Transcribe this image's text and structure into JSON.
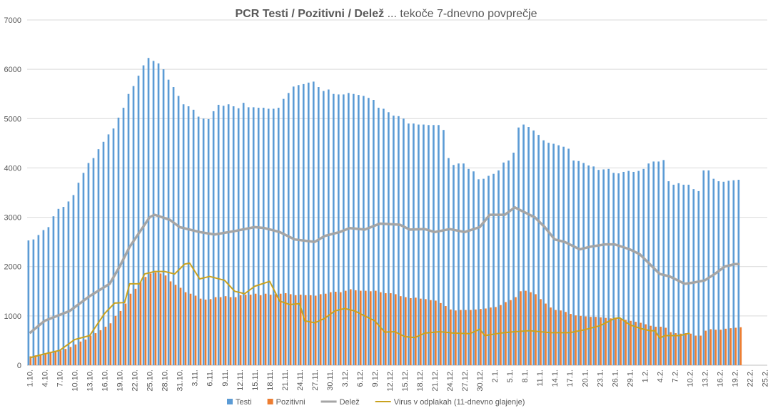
{
  "chart_data": {
    "type": "bar",
    "title_bold": "PCR Testi / Pozitivni / Delež",
    "title_rest": " ... tekoče 7-dnevno povprečje",
    "ylim": [
      0,
      7000
    ],
    "yticks": [
      "0",
      "1000",
      "2000",
      "3000",
      "4000",
      "5000",
      "6000",
      "7000"
    ],
    "grid": true,
    "legend_position": "bottom",
    "xticks": [
      "1.10.",
      "4.10.",
      "7.10.",
      "10.10.",
      "13.10.",
      "16.10.",
      "19.10.",
      "22.10.",
      "25.10.",
      "28.10.",
      "31.10.",
      "3.11.",
      "6.11.",
      "9.11.",
      "12.11.",
      "15.11.",
      "18.11.",
      "21.11.",
      "24.11.",
      "27.11.",
      "30.11.",
      "3.12.",
      "6.12.",
      "9.12.",
      "12.12.",
      "15.12.",
      "18.12.",
      "21.12.",
      "24.12.",
      "27.12.",
      "30.12.",
      "2.1.",
      "5.1.",
      "8.1.",
      "11.1.",
      "14.1.",
      "17.1.",
      "20.1.",
      "23.1.",
      "26.1.",
      "29.1.",
      "1.2.",
      "4.2.",
      "7.2.",
      "10.2.",
      "13.2.",
      "16.2.",
      "19.2.",
      "22.2.",
      "25.2."
    ],
    "categories": [
      "1.10.",
      "2.10.",
      "3.10.",
      "4.10.",
      "5.10.",
      "6.10.",
      "7.10.",
      "8.10.",
      "9.10.",
      "10.10.",
      "11.10.",
      "12.10.",
      "13.10.",
      "14.10.",
      "15.10.",
      "16.10.",
      "17.10.",
      "18.10.",
      "19.10.",
      "20.10.",
      "21.10.",
      "22.10.",
      "23.10.",
      "24.10.",
      "25.10.",
      "26.10.",
      "27.10.",
      "28.10.",
      "29.10.",
      "30.10.",
      "31.10.",
      "1.11.",
      "2.11.",
      "3.11.",
      "4.11.",
      "5.11.",
      "6.11.",
      "7.11.",
      "8.11.",
      "9.11.",
      "10.11.",
      "11.11.",
      "12.11.",
      "13.11.",
      "14.11.",
      "15.11.",
      "16.11.",
      "17.11.",
      "18.11.",
      "19.11.",
      "20.11.",
      "21.11.",
      "22.11.",
      "23.11.",
      "24.11.",
      "25.11.",
      "26.11.",
      "27.11.",
      "28.11.",
      "29.11.",
      "30.11.",
      "1.12.",
      "2.12.",
      "3.12.",
      "4.12.",
      "5.12.",
      "6.12.",
      "7.12.",
      "8.12.",
      "9.12.",
      "10.12.",
      "11.12.",
      "12.12.",
      "13.12.",
      "14.12.",
      "15.12.",
      "16.12.",
      "17.12.",
      "18.12.",
      "19.12.",
      "20.12.",
      "21.12.",
      "22.12.",
      "23.12.",
      "24.12.",
      "25.12.",
      "26.12.",
      "27.12.",
      "28.12.",
      "29.12.",
      "30.12.",
      "31.12.",
      "1.1.",
      "2.1.",
      "3.1.",
      "4.1.",
      "5.1.",
      "6.1.",
      "7.1.",
      "8.1.",
      "9.1.",
      "10.1.",
      "11.1.",
      "12.1.",
      "13.1.",
      "14.1.",
      "15.1.",
      "16.1.",
      "17.1.",
      "18.1.",
      "19.1.",
      "20.1.",
      "21.1.",
      "22.1.",
      "23.1.",
      "24.1.",
      "25.1.",
      "26.1.",
      "27.1.",
      "28.1.",
      "29.1.",
      "30.1.",
      "31.1.",
      "1.2.",
      "2.2.",
      "3.2.",
      "4.2.",
      "5.2.",
      "6.2.",
      "7.2.",
      "8.2.",
      "9.2.",
      "10.2.",
      "11.2.",
      "12.2.",
      "13.2.",
      "14.2.",
      "15.2.",
      "16.2.",
      "17.2.",
      "18.2.",
      "19.2.",
      "20.2."
    ],
    "series": [
      {
        "name": "Testi",
        "kind": "bar",
        "color": "#5B9BD5",
        "values": [
          2530,
          2550,
          2640,
          2740,
          2800,
          3020,
          3170,
          3210,
          3320,
          3450,
          3700,
          3900,
          4100,
          4200,
          4380,
          4530,
          4680,
          4800,
          5020,
          5220,
          5500,
          5660,
          5870,
          6080,
          6230,
          6170,
          6120,
          6000,
          5790,
          5640,
          5460,
          5290,
          5250,
          5180,
          5040,
          5000,
          4990,
          5150,
          5280,
          5260,
          5290,
          5250,
          5210,
          5320,
          5230,
          5230,
          5220,
          5220,
          5200,
          5200,
          5220,
          5400,
          5520,
          5650,
          5680,
          5700,
          5730,
          5750,
          5640,
          5560,
          5590,
          5500,
          5490,
          5490,
          5520,
          5500,
          5480,
          5460,
          5420,
          5380,
          5220,
          5200,
          5130,
          5060,
          5050,
          5000,
          4900,
          4900,
          4880,
          4880,
          4870,
          4870,
          4870,
          4770,
          4200,
          4060,
          4090,
          4090,
          3980,
          3930,
          3770,
          3780,
          3840,
          3880,
          3950,
          4110,
          4150,
          4310,
          4820,
          4880,
          4830,
          4760,
          4670,
          4560,
          4510,
          4490,
          4460,
          4430,
          4390,
          4150,
          4140,
          4100,
          4050,
          4030,
          3960,
          3970,
          3980,
          3900,
          3890,
          3920,
          3940,
          3920,
          3940,
          3980,
          4090,
          4130,
          4130,
          4160,
          3730,
          3660,
          3690,
          3660,
          3660,
          3570,
          3530,
          3950,
          3950,
          3780,
          3730,
          3720,
          3740,
          3750,
          3760
        ]
      },
      {
        "name": "Pozitivni",
        "kind": "bar",
        "color": "#ED7D31",
        "values": [
          180,
          200,
          220,
          240,
          270,
          280,
          300,
          330,
          370,
          420,
          480,
          520,
          600,
          650,
          710,
          780,
          850,
          1000,
          1100,
          1250,
          1450,
          1550,
          1680,
          1790,
          1860,
          1880,
          1860,
          1820,
          1700,
          1630,
          1570,
          1480,
          1450,
          1410,
          1350,
          1330,
          1340,
          1380,
          1380,
          1400,
          1380,
          1380,
          1420,
          1430,
          1430,
          1450,
          1420,
          1450,
          1430,
          1440,
          1450,
          1460,
          1440,
          1420,
          1430,
          1420,
          1420,
          1410,
          1440,
          1450,
          1480,
          1490,
          1480,
          1510,
          1540,
          1520,
          1510,
          1510,
          1500,
          1510,
          1480,
          1460,
          1460,
          1440,
          1400,
          1380,
          1360,
          1370,
          1350,
          1340,
          1320,
          1310,
          1260,
          1200,
          1130,
          1110,
          1120,
          1120,
          1120,
          1130,
          1140,
          1150,
          1170,
          1180,
          1220,
          1280,
          1320,
          1380,
          1500,
          1510,
          1480,
          1440,
          1340,
          1250,
          1170,
          1120,
          1110,
          1080,
          1040,
          1010,
          1000,
          990,
          980,
          980,
          970,
          960,
          950,
          940,
          930,
          920,
          900,
          880,
          860,
          830,
          800,
          780,
          780,
          760,
          670,
          650,
          640,
          650,
          640,
          600,
          600,
          700,
          730,
          720,
          720,
          740,
          750,
          760,
          770
        ]
      },
      {
        "name": "Delež",
        "kind": "line",
        "color": "#A5A5A5",
        "points": [
          [
            "1.10.",
            650
          ],
          [
            "4.10.",
            900
          ],
          [
            "9.10.",
            1100
          ],
          [
            "13.10.",
            1400
          ],
          [
            "17.10.",
            1650
          ],
          [
            "19.10.",
            2000
          ],
          [
            "21.10.",
            2400
          ],
          [
            "23.10.",
            2700
          ],
          [
            "25.10.",
            3000
          ],
          [
            "26.10.",
            3050
          ],
          [
            "29.10.",
            2950
          ],
          [
            "31.10.",
            2800
          ],
          [
            "4.11.",
            2700
          ],
          [
            "7.11.",
            2650
          ],
          [
            "11.11.",
            2720
          ],
          [
            "15.11.",
            2800
          ],
          [
            "17.11.",
            2780
          ],
          [
            "20.11.",
            2700
          ],
          [
            "23.11.",
            2550
          ],
          [
            "27.11.",
            2500
          ],
          [
            "29.11.",
            2620
          ],
          [
            "2.12.",
            2700
          ],
          [
            "4.12.",
            2780
          ],
          [
            "7.12.",
            2750
          ],
          [
            "10.12.",
            2870
          ],
          [
            "14.12.",
            2850
          ],
          [
            "16.12.",
            2750
          ],
          [
            "19.12.",
            2760
          ],
          [
            "21.12.",
            2700
          ],
          [
            "24.12.",
            2760
          ],
          [
            "27.12.",
            2700
          ],
          [
            "30.12.",
            2800
          ],
          [
            "1.1.",
            3050
          ],
          [
            "4.1.",
            3050
          ],
          [
            "6.1.",
            3200
          ],
          [
            "8.1.",
            3100
          ],
          [
            "10.1.",
            3000
          ],
          [
            "12.1.",
            2800
          ],
          [
            "14.1.",
            2550
          ],
          [
            "16.1.",
            2500
          ],
          [
            "19.1.",
            2350
          ],
          [
            "21.1.",
            2400
          ],
          [
            "24.1.",
            2450
          ],
          [
            "26.1.",
            2450
          ],
          [
            "29.1.",
            2350
          ],
          [
            "31.1.",
            2250
          ],
          [
            "2.2.",
            2050
          ],
          [
            "4.2.",
            1850
          ],
          [
            "6.2.",
            1800
          ],
          [
            "9.2.",
            1650
          ],
          [
            "11.2.",
            1680
          ],
          [
            "13.2.",
            1720
          ],
          [
            "15.2.",
            1850
          ],
          [
            "17.2.",
            2000
          ],
          [
            "19.2.",
            2050
          ],
          [
            "20.2.",
            2050
          ]
        ]
      },
      {
        "name": "Virus v odplakah (11-dnevno glajenje)",
        "kind": "line",
        "color": "#C9A21F",
        "points": [
          [
            "1.10.",
            150
          ],
          [
            "4.10.",
            230
          ],
          [
            "7.10.",
            300
          ],
          [
            "10.10.",
            520
          ],
          [
            "13.10.",
            600
          ],
          [
            "16.10.",
            1050
          ],
          [
            "18.10.",
            1260
          ],
          [
            "20.10.",
            1270
          ],
          [
            "21.10.",
            1650
          ],
          [
            "23.10.",
            1650
          ],
          [
            "24.10.",
            1850
          ],
          [
            "26.10.",
            1900
          ],
          [
            "28.10.",
            1900
          ],
          [
            "30.10.",
            1850
          ],
          [
            "1.11.",
            2050
          ],
          [
            "2.11.",
            2070
          ],
          [
            "4.11.",
            1750
          ],
          [
            "6.11.",
            1800
          ],
          [
            "9.11.",
            1720
          ],
          [
            "11.11.",
            1500
          ],
          [
            "13.11.",
            1450
          ],
          [
            "15.11.",
            1600
          ],
          [
            "18.11.",
            1700
          ],
          [
            "20.11.",
            1300
          ],
          [
            "22.11.",
            1230
          ],
          [
            "24.11.",
            1250
          ],
          [
            "25.11.",
            900
          ],
          [
            "27.11.",
            860
          ],
          [
            "29.11.",
            950
          ],
          [
            "1.12.",
            1100
          ],
          [
            "3.12.",
            1150
          ],
          [
            "5.12.",
            1100
          ],
          [
            "7.12.",
            1000
          ],
          [
            "9.12.",
            900
          ],
          [
            "11.12.",
            670
          ],
          [
            "13.12.",
            680
          ],
          [
            "15.12.",
            580
          ],
          [
            "17.12.",
            560
          ],
          [
            "19.12.",
            650
          ],
          [
            "22.12.",
            680
          ],
          [
            "25.12.",
            650
          ],
          [
            "28.12.",
            640
          ],
          [
            "30.12.",
            730
          ],
          [
            "31.12.",
            600
          ],
          [
            "3.1.",
            650
          ],
          [
            "6.1.",
            680
          ],
          [
            "9.1.",
            700
          ],
          [
            "13.1.",
            660
          ],
          [
            "17.1.",
            660
          ],
          [
            "20.1.",
            720
          ],
          [
            "23.1.",
            800
          ],
          [
            "26.1.",
            950
          ],
          [
            "27.1.",
            960
          ],
          [
            "29.1.",
            820
          ],
          [
            "31.1.",
            750
          ],
          [
            "2.2.",
            700
          ],
          [
            "3.2.",
            700
          ],
          [
            "4.2.",
            550
          ],
          [
            "5.2.",
            600
          ],
          [
            "8.2.",
            600
          ],
          [
            "10.2.",
            650
          ]
        ]
      }
    ]
  }
}
